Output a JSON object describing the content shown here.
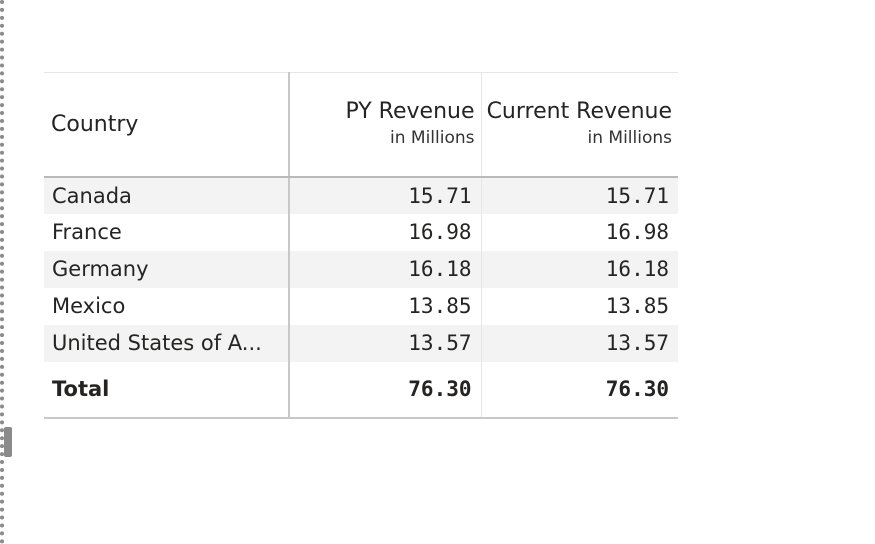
{
  "table": {
    "columns": [
      {
        "title": "Country",
        "subtitle": ""
      },
      {
        "title": "PY Revenue",
        "subtitle": "in Millions"
      },
      {
        "title": "Current Revenue",
        "subtitle": "in Millions"
      }
    ],
    "rows": [
      {
        "country": "Canada",
        "py_revenue": "15.71",
        "current_revenue": "15.71"
      },
      {
        "country": "France",
        "py_revenue": "16.98",
        "current_revenue": "16.98"
      },
      {
        "country": "Germany",
        "py_revenue": "16.18",
        "current_revenue": "16.18"
      },
      {
        "country": "Mexico",
        "py_revenue": "13.85",
        "current_revenue": "13.85"
      },
      {
        "country": "United States of A...",
        "py_revenue": "13.57",
        "current_revenue": "13.57"
      }
    ],
    "total": {
      "label": "Total",
      "py_revenue": "76.30",
      "current_revenue": "76.30"
    }
  }
}
